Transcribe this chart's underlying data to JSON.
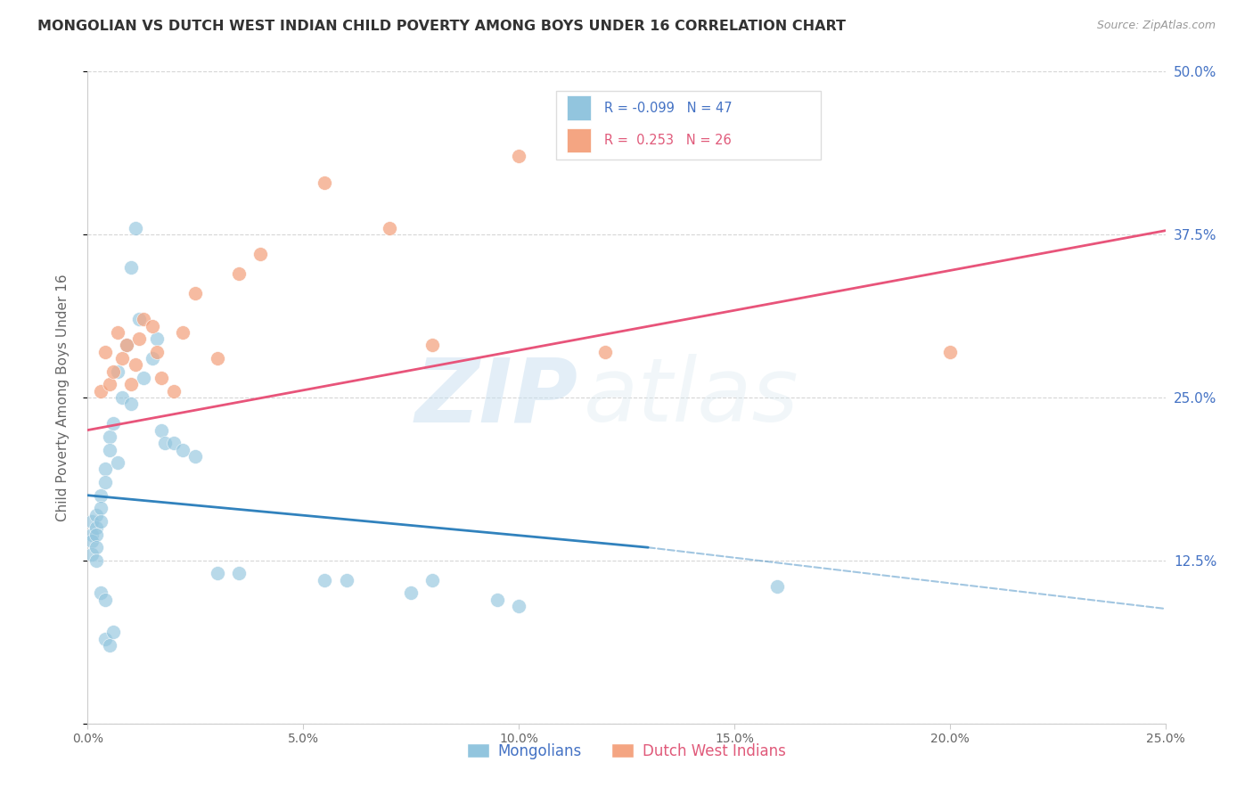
{
  "title": "MONGOLIAN VS DUTCH WEST INDIAN CHILD POVERTY AMONG BOYS UNDER 16 CORRELATION CHART",
  "source": "Source: ZipAtlas.com",
  "ylabel": "Child Poverty Among Boys Under 16",
  "xlim": [
    0.0,
    0.25
  ],
  "ylim": [
    0.0,
    0.5
  ],
  "xticks": [
    0.0,
    0.05,
    0.1,
    0.15,
    0.2,
    0.25
  ],
  "yticks": [
    0.0,
    0.125,
    0.25,
    0.375,
    0.5
  ],
  "ytick_labels_right": [
    "",
    "12.5%",
    "25.0%",
    "37.5%",
    "50.0%"
  ],
  "mongolian_color": "#92c5de",
  "dutch_color": "#f4a582",
  "mongolian_fill": "#aec9e8",
  "dutch_fill": "#f9c4c4",
  "mongolian_line_color": "#3182bd",
  "dutch_line_color": "#e8547a",
  "background_color": "#ffffff",
  "grid_color": "#cccccc",
  "watermark_zip": "ZIP",
  "watermark_atlas": "atlas",
  "mongolians_x": [
    0.001,
    0.001,
    0.001,
    0.001,
    0.002,
    0.002,
    0.002,
    0.002,
    0.002,
    0.003,
    0.003,
    0.003,
    0.003,
    0.004,
    0.004,
    0.004,
    0.004,
    0.005,
    0.005,
    0.005,
    0.006,
    0.006,
    0.007,
    0.007,
    0.008,
    0.009,
    0.01,
    0.01,
    0.011,
    0.012,
    0.013,
    0.015,
    0.016,
    0.017,
    0.018,
    0.02,
    0.022,
    0.025,
    0.03,
    0.035,
    0.055,
    0.06,
    0.075,
    0.08,
    0.095,
    0.1,
    0.16
  ],
  "mongolians_y": [
    0.155,
    0.145,
    0.14,
    0.13,
    0.16,
    0.15,
    0.145,
    0.135,
    0.125,
    0.175,
    0.165,
    0.155,
    0.1,
    0.195,
    0.185,
    0.095,
    0.065,
    0.22,
    0.21,
    0.06,
    0.23,
    0.07,
    0.27,
    0.2,
    0.25,
    0.29,
    0.35,
    0.245,
    0.38,
    0.31,
    0.265,
    0.28,
    0.295,
    0.225,
    0.215,
    0.215,
    0.21,
    0.205,
    0.115,
    0.115,
    0.11,
    0.11,
    0.1,
    0.11,
    0.095,
    0.09,
    0.105
  ],
  "dutch_x": [
    0.003,
    0.004,
    0.005,
    0.006,
    0.007,
    0.008,
    0.009,
    0.01,
    0.011,
    0.012,
    0.013,
    0.015,
    0.016,
    0.017,
    0.02,
    0.022,
    0.025,
    0.03,
    0.035,
    0.04,
    0.055,
    0.07,
    0.08,
    0.1,
    0.12,
    0.2
  ],
  "dutch_y": [
    0.255,
    0.285,
    0.26,
    0.27,
    0.3,
    0.28,
    0.29,
    0.26,
    0.275,
    0.295,
    0.31,
    0.305,
    0.285,
    0.265,
    0.255,
    0.3,
    0.33,
    0.28,
    0.345,
    0.36,
    0.415,
    0.38,
    0.29,
    0.435,
    0.285,
    0.285
  ],
  "mong_line_x0": 0.0,
  "mong_line_x1": 0.13,
  "mong_line_x2": 0.25,
  "mong_line_y0": 0.175,
  "mong_line_y1": 0.135,
  "mong_line_y2": 0.088,
  "dutch_line_x0": 0.0,
  "dutch_line_x1": 0.25,
  "dutch_line_y0": 0.225,
  "dutch_line_y1": 0.378
}
